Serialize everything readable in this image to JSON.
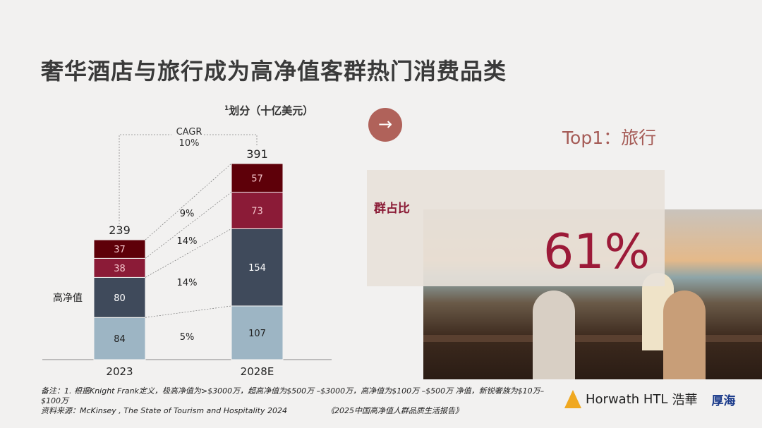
{
  "title": "奢华酒店与旅行成为高净值客群热门消费品类",
  "chart_data": {
    "type": "bar",
    "stacked": true,
    "unit_sup": "1",
    "unit": "划分（十亿美元）",
    "categories": [
      "2023",
      "2028E"
    ],
    "totals": [
      239,
      391
    ],
    "series": [
      {
        "values": [
          84,
          107
        ],
        "color": "#9db5c4",
        "growth": "5%"
      },
      {
        "name": "高净值",
        "values": [
          80,
          154
        ],
        "color": "#3f4a5b",
        "growth": "14%"
      },
      {
        "values": [
          38,
          73
        ],
        "color": "#8b1b37",
        "growth": "14%"
      },
      {
        "values": [
          37,
          57
        ],
        "color": "#5e0009",
        "growth": "9%"
      }
    ],
    "cagr_label": "CAGR",
    "cagr_value": "10%",
    "series_label": "高净值"
  },
  "right": {
    "headline": "Top1：旅行",
    "share_label": "群占比",
    "share_value": "61%",
    "accent": "#9c1a38"
  },
  "footer": {
    "note": "备注：1. 根据Knight Frank定义，极高净值为>$3000万，超高净值为$500万 –$3000万，高净值为$100万 –$500万 净值，新锐奢族为$10万–",
    "note2": "$100万",
    "source": "资料来源：McKinsey , The State of Tourism and Hospitality 2024",
    "report": "《2025中国高净值人群品质生活报告》",
    "logo1": "Horwath HTL",
    "logo1_cn": "浩華",
    "logo2": "厚海"
  }
}
